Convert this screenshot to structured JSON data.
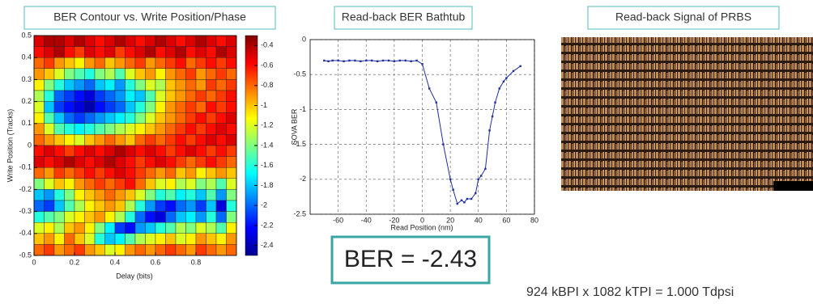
{
  "chart_data": [
    {
      "type": "heatmap",
      "title": "BER Contour vs. Write Position/Phase",
      "x_label": "Delay (bits)",
      "y_label": "Write Position (Tracks)",
      "xlim": [
        0,
        1
      ],
      "xticks": [
        0,
        0.2,
        0.4,
        0.6,
        0.8
      ],
      "ylim": [
        -0.5,
        0.5
      ],
      "yticks": [
        0.5,
        0.4,
        0.3,
        0.2,
        0.1,
        0,
        -0.1,
        -0.2,
        -0.3,
        -0.4,
        -0.5
      ],
      "x": [
        0.025,
        0.075,
        0.125,
        0.175,
        0.225,
        0.275,
        0.325,
        0.375,
        0.425,
        0.475,
        0.525,
        0.575,
        0.625,
        0.675,
        0.725,
        0.775,
        0.825,
        0.875,
        0.925,
        0.975
      ],
      "y": [
        0.475,
        0.425,
        0.375,
        0.325,
        0.275,
        0.225,
        0.175,
        0.125,
        0.075,
        0.025,
        -0.025,
        -0.075,
        -0.125,
        -0.175,
        -0.225,
        -0.275,
        -0.325,
        -0.375,
        -0.425,
        -0.475
      ],
      "z": [
        [
          -0.5,
          -0.4,
          -0.4,
          -0.5,
          -0.4,
          -0.5,
          -0.6,
          -0.5,
          -0.4,
          -0.5,
          -0.6,
          -0.5,
          -0.4,
          -0.5,
          -0.6,
          -0.5,
          -0.4,
          -0.5,
          -0.6,
          -0.5
        ],
        [
          -0.6,
          -0.5,
          -0.4,
          -0.6,
          -0.7,
          -0.5,
          -0.6,
          -0.5,
          -0.7,
          -0.6,
          -0.5,
          -0.4,
          -0.6,
          -0.5,
          -0.4,
          -0.6,
          -0.5,
          -0.6,
          -0.4,
          -0.5
        ],
        [
          -0.8,
          -0.7,
          -0.9,
          -1.0,
          -1.1,
          -0.9,
          -0.8,
          -1.0,
          -0.9,
          -0.8,
          -0.7,
          -0.9,
          -0.8,
          -0.7,
          -0.6,
          -0.8,
          -0.7,
          -0.6,
          -0.7,
          -0.6
        ],
        [
          -0.9,
          -1.0,
          -1.2,
          -1.4,
          -1.5,
          -1.6,
          -1.4,
          -1.3,
          -1.5,
          -1.2,
          -1.0,
          -0.9,
          -1.1,
          -0.9,
          -0.8,
          -0.7,
          -0.9,
          -0.8,
          -0.7,
          -0.8
        ],
        [
          -1.1,
          -1.4,
          -1.6,
          -1.8,
          -1.9,
          -2.0,
          -1.8,
          -1.7,
          -1.9,
          -1.6,
          -1.4,
          -1.2,
          -1.3,
          -1.0,
          -0.9,
          -0.8,
          -0.9,
          -0.7,
          -0.8,
          -0.7
        ],
        [
          -1.3,
          -1.6,
          -2.0,
          -2.1,
          -2.2,
          -2.3,
          -2.1,
          -2.0,
          -1.9,
          -1.7,
          -1.8,
          -1.5,
          -1.2,
          -1.0,
          -0.9,
          -0.8,
          -0.7,
          -0.8,
          -0.7,
          -0.6
        ],
        [
          -1.2,
          -1.8,
          -2.1,
          -2.2,
          -2.3,
          -2.4,
          -2.2,
          -2.1,
          -2.0,
          -1.8,
          -1.6,
          -1.4,
          -1.1,
          -0.9,
          -0.8,
          -0.7,
          -0.8,
          -0.6,
          -0.7,
          -0.6
        ],
        [
          -1.1,
          -1.5,
          -1.8,
          -2.0,
          -2.1,
          -2.0,
          -1.9,
          -1.8,
          -1.7,
          -1.6,
          -1.4,
          -1.2,
          -1.0,
          -0.9,
          -0.8,
          -0.7,
          -0.6,
          -0.7,
          -0.6,
          -0.5
        ],
        [
          -0.9,
          -1.2,
          -1.5,
          -1.6,
          -1.7,
          -1.6,
          -1.5,
          -1.4,
          -1.3,
          -1.2,
          -1.1,
          -1.0,
          -0.9,
          -0.8,
          -0.7,
          -0.6,
          -0.7,
          -0.6,
          -0.5,
          -0.6
        ],
        [
          -0.8,
          -0.9,
          -1.0,
          -1.1,
          -1.2,
          -1.0,
          -0.9,
          -0.8,
          -0.9,
          -1.0,
          -0.8,
          -0.7,
          -0.8,
          -0.7,
          -0.6,
          -0.7,
          -0.6,
          -0.5,
          -0.6,
          -0.5
        ],
        [
          -0.6,
          -0.5,
          -0.6,
          -0.7,
          -0.6,
          -0.5,
          -0.6,
          -0.5,
          -0.4,
          -0.5,
          -0.6,
          -0.5,
          -0.6,
          -0.7,
          -0.6,
          -0.5,
          -0.6,
          -0.7,
          -0.6,
          -0.7
        ],
        [
          -0.5,
          -0.6,
          -0.5,
          -0.4,
          -0.5,
          -0.6,
          -0.5,
          -0.4,
          -0.5,
          -0.6,
          -0.7,
          -0.6,
          -0.5,
          -0.6,
          -0.7,
          -0.8,
          -0.7,
          -0.6,
          -0.7,
          -0.8
        ],
        [
          -0.8,
          -0.9,
          -0.7,
          -0.8,
          -0.7,
          -0.6,
          -0.7,
          -0.6,
          -0.5,
          -0.6,
          -0.7,
          -0.8,
          -0.9,
          -0.8,
          -1.0,
          -0.9,
          -1.1,
          -1.0,
          -0.9,
          -1.0
        ],
        [
          -1.4,
          -1.2,
          -1.0,
          -1.1,
          -0.9,
          -0.8,
          -0.7,
          -0.8,
          -0.7,
          -0.6,
          -0.8,
          -1.0,
          -1.2,
          -1.1,
          -1.3,
          -1.2,
          -1.4,
          -1.3,
          -1.5,
          -1.2
        ],
        [
          -1.8,
          -1.9,
          -1.6,
          -1.4,
          -1.1,
          -1.0,
          -0.9,
          -0.8,
          -0.9,
          -1.0,
          -1.2,
          -1.4,
          -1.6,
          -1.5,
          -1.7,
          -1.6,
          -1.8,
          -1.5,
          -1.9,
          -1.4
        ],
        [
          -2.0,
          -2.1,
          -1.8,
          -1.5,
          -1.3,
          -1.1,
          -1.0,
          -0.9,
          -1.0,
          -1.3,
          -1.6,
          -1.9,
          -2.1,
          -2.2,
          -2.0,
          -1.9,
          -2.1,
          -1.8,
          -2.3,
          -1.6
        ],
        [
          -1.6,
          -1.5,
          -1.4,
          -1.2,
          -1.1,
          -1.0,
          -0.9,
          -1.1,
          -1.3,
          -1.6,
          -2.0,
          -2.2,
          -2.3,
          -2.0,
          -1.8,
          -1.7,
          -1.9,
          -1.6,
          -2.0,
          -1.4
        ],
        [
          -1.2,
          -1.1,
          -1.3,
          -1.0,
          -0.9,
          -1.1,
          -1.4,
          -1.7,
          -2.1,
          -2.2,
          -1.9,
          -1.8,
          -1.6,
          -1.5,
          -1.3,
          -1.4,
          -1.2,
          -1.3,
          -1.5,
          -1.1
        ],
        [
          -1.0,
          -0.9,
          -1.1,
          -0.8,
          -1.0,
          -1.2,
          -1.6,
          -1.8,
          -1.7,
          -1.5,
          -1.3,
          -1.2,
          -1.1,
          -1.0,
          -1.2,
          -1.1,
          -0.9,
          -1.0,
          -1.1,
          -0.9
        ],
        [
          -0.8,
          -0.7,
          -0.9,
          -0.8,
          -0.7,
          -0.9,
          -1.0,
          -1.2,
          -1.1,
          -0.9,
          -0.8,
          -0.9,
          -0.8,
          -0.7,
          -0.8,
          -0.9,
          -0.7,
          -0.8,
          -0.9,
          -0.8
        ]
      ],
      "colormap": "jet",
      "clim": [
        -2.5,
        -0.3
      ],
      "colorbar_ticks": [
        -0.4,
        -0.6,
        -0.8,
        -1,
        -1.2,
        -1.4,
        -1.6,
        -1.8,
        -2,
        -2.2,
        -2.4
      ]
    },
    {
      "type": "line",
      "title": "Read-back BER Bathtub",
      "x_label": "Read Position (nm)",
      "y_label": "SOVA BER",
      "xlim": [
        -80,
        80
      ],
      "xticks": [
        -60,
        -40,
        -20,
        0,
        20,
        40,
        60,
        80
      ],
      "ylim": [
        -2.5,
        0
      ],
      "yticks": [
        0,
        -0.5,
        -1,
        -1.5,
        -2,
        -2.5
      ],
      "grid": true,
      "series": [
        {
          "color": "#1f2fa0",
          "x": [
            -70,
            -67,
            -64,
            -60,
            -56,
            -52,
            -48,
            -44,
            -40,
            -36,
            -32,
            -28,
            -24,
            -20,
            -16,
            -12,
            -8,
            -4,
            0,
            5,
            10,
            15,
            20,
            22,
            25,
            28,
            30,
            32,
            35,
            38,
            40,
            42,
            45,
            48,
            50,
            52,
            55,
            58,
            60,
            65,
            70
          ],
          "values": [
            -0.3,
            -0.31,
            -0.3,
            -0.3,
            -0.31,
            -0.3,
            -0.3,
            -0.31,
            -0.3,
            -0.3,
            -0.31,
            -0.3,
            -0.3,
            -0.31,
            -0.3,
            -0.3,
            -0.31,
            -0.3,
            -0.35,
            -0.7,
            -0.9,
            -1.5,
            -2.0,
            -2.15,
            -2.35,
            -2.3,
            -2.33,
            -2.28,
            -2.28,
            -2.2,
            -2.0,
            -1.95,
            -1.85,
            -1.3,
            -1.1,
            -0.9,
            -0.7,
            -0.6,
            -0.55,
            -0.45,
            -0.38
          ]
        }
      ]
    },
    {
      "type": "image",
      "title": "Read-back Signal of PRBS"
    }
  ],
  "annotations": {
    "ber": "BER = -2.43",
    "density": "924 kBPI x 1082 kTPI = 1.000 Tdpsi"
  }
}
